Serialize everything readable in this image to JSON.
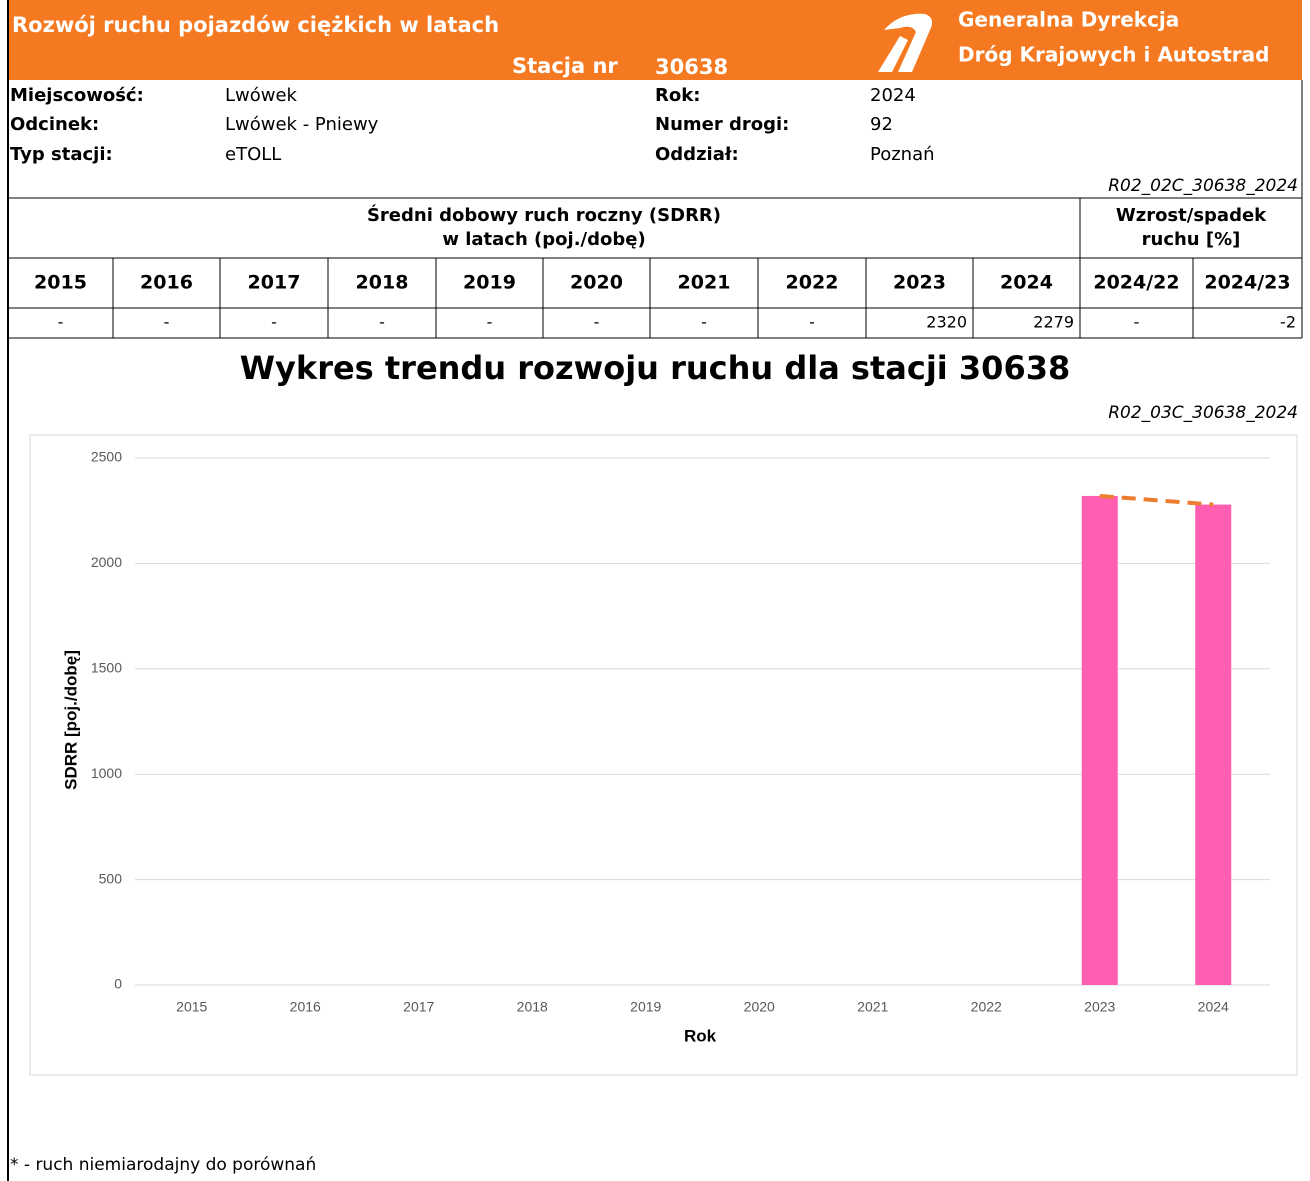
{
  "header": {
    "title": "Rozwój ruchu pojazdów ciężkich w latach",
    "station_label": "Stacja nr",
    "station_number": "30638",
    "org_line1": "Generalna Dyrekcja",
    "org_line2": "Dróg Krajowych i Autostrad"
  },
  "info": {
    "rows": [
      [
        "Miejscowość:",
        "Lwówek",
        "Rok:",
        "2024"
      ],
      [
        "Odcinek:",
        "Lwówek - Pniewy",
        "Numer drogi:",
        "92"
      ],
      [
        "Typ stacji:",
        "eTOLL",
        "Oddział:",
        "Poznań"
      ]
    ]
  },
  "table_code": "R02_02C_30638_2024",
  "table": {
    "header_main": [
      "Średni dobowy ruch roczny (SDRR)",
      "w latach (poj./dobę)"
    ],
    "header_change": [
      "Wzrost/spadek",
      "ruchu [%]"
    ],
    "columns": [
      "2015",
      "2016",
      "2017",
      "2018",
      "2019",
      "2020",
      "2021",
      "2022",
      "2023",
      "2024",
      "2024/22",
      "2024/23"
    ],
    "values": [
      "-",
      "-",
      "-",
      "-",
      "-",
      "-",
      "-",
      "-",
      2320,
      2279,
      "-",
      -2
    ]
  },
  "chart_code": "R02_03C_30638_2024",
  "chart_data": {
    "type": "bar",
    "title": "Wykres trendu rozwoju ruchu dla stacji 30638",
    "categories": [
      "2015",
      "2016",
      "2017",
      "2018",
      "2019",
      "2020",
      "2021",
      "2022",
      "2023",
      "2024"
    ],
    "values": [
      null,
      null,
      null,
      null,
      null,
      null,
      null,
      null,
      2320,
      2279
    ],
    "color": "#ff5eb1",
    "trend_color": "#ed7d31",
    "ylim": [
      0,
      2500
    ],
    "yticks": [
      0,
      500,
      1000,
      1500,
      2000,
      2500
    ],
    "y_label": "SDRR [poj./dobę]",
    "x_label": "Rok",
    "grid": true
  },
  "footnote": "* - ruch niemiarodajny do porównań"
}
